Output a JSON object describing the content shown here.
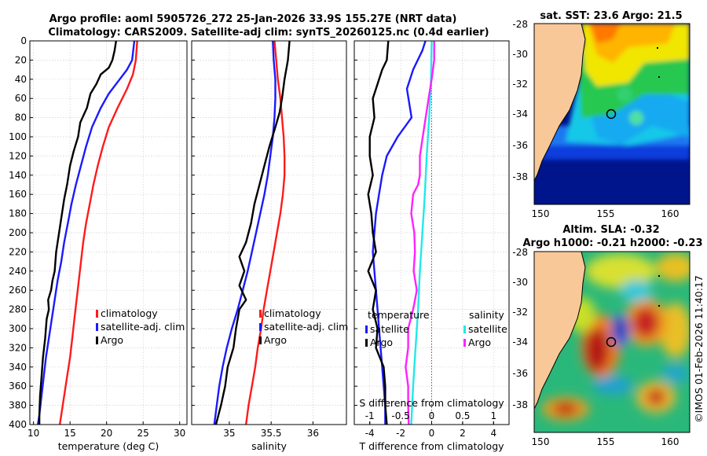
{
  "figure": {
    "title_line1": "Argo profile: aoml 5905726_272 25-Jan-2026 33.9S 155.27E (NRT data)",
    "title_line2": "Climatology: CARS2009. Satellite-adj clim: synTS_20260125.nc (0.4d earlier)",
    "watermark": "©IMOS 01-Feb-2026 11:40:17"
  },
  "colors": {
    "climatology": "#ff1a1a",
    "satellite": "#1a1aff",
    "argo": "#000000",
    "cyan": "#22e8e8",
    "magenta": "#ff22ff",
    "land": "#f8c898"
  },
  "maps": {
    "sst_title": "sat. SST: 23.6 Argo: 21.5",
    "sla_title1": "Altim. SLA: -0.32",
    "sla_title2": "Argo h1000: -0.21 h2000: -0.23",
    "ylabels": [
      "-28",
      "-30",
      "-32",
      "-34",
      "-36",
      "-38"
    ],
    "xlabels": [
      "150",
      "155",
      "160"
    ]
  },
  "chart_data": [
    {
      "type": "line",
      "id": "temperature",
      "xlabel": "temperature (deg C)",
      "ylabel": "",
      "xlim": [
        9.5,
        31
      ],
      "ylim": [
        400,
        0
      ],
      "xticks": [
        10,
        15,
        20,
        25,
        30
      ],
      "yticks": [
        0,
        20,
        40,
        60,
        80,
        100,
        120,
        140,
        160,
        180,
        200,
        220,
        240,
        260,
        280,
        300,
        320,
        340,
        360,
        380,
        400
      ],
      "grid": true,
      "legend": {
        "position": "lower-right",
        "entries": [
          "climatology",
          "satellite-adj. clim",
          "Argo"
        ]
      },
      "series": [
        {
          "name": "climatology",
          "color": "red",
          "points": [
            [
              24.2,
              0
            ],
            [
              24.0,
              20
            ],
            [
              23.6,
              35
            ],
            [
              22.8,
              50
            ],
            [
              21.5,
              70
            ],
            [
              20.3,
              90
            ],
            [
              19.5,
              110
            ],
            [
              18.8,
              130
            ],
            [
              18.2,
              150
            ],
            [
              17.7,
              170
            ],
            [
              17.2,
              190
            ],
            [
              16.8,
              210
            ],
            [
              16.5,
              230
            ],
            [
              16.2,
              250
            ],
            [
              15.9,
              270
            ],
            [
              15.6,
              290
            ],
            [
              15.3,
              310
            ],
            [
              15.0,
              330
            ],
            [
              14.6,
              350
            ],
            [
              14.2,
              370
            ],
            [
              13.8,
              390
            ],
            [
              13.6,
              400
            ]
          ]
        },
        {
          "name": "satellite-adj. clim",
          "color": "blue",
          "points": [
            [
              23.8,
              0
            ],
            [
              23.5,
              20
            ],
            [
              22.8,
              30
            ],
            [
              21.8,
              40
            ],
            [
              20.3,
              55
            ],
            [
              19.2,
              70
            ],
            [
              18.0,
              90
            ],
            [
              17.2,
              110
            ],
            [
              16.5,
              130
            ],
            [
              15.8,
              150
            ],
            [
              15.2,
              170
            ],
            [
              14.7,
              190
            ],
            [
              14.2,
              210
            ],
            [
              13.8,
              230
            ],
            [
              13.3,
              250
            ],
            [
              12.9,
              270
            ],
            [
              12.5,
              290
            ],
            [
              12.1,
              310
            ],
            [
              11.7,
              330
            ],
            [
              11.4,
              350
            ],
            [
              11.1,
              370
            ],
            [
              10.8,
              390
            ],
            [
              10.6,
              400
            ]
          ]
        },
        {
          "name": "Argo",
          "color": "black",
          "points": [
            [
              21.3,
              0
            ],
            [
              21.1,
              10
            ],
            [
              20.8,
              20
            ],
            [
              20.3,
              28
            ],
            [
              19.2,
              35
            ],
            [
              18.6,
              45
            ],
            [
              17.8,
              55
            ],
            [
              17.3,
              70
            ],
            [
              16.4,
              85
            ],
            [
              16.1,
              100
            ],
            [
              15.5,
              115
            ],
            [
              15.0,
              130
            ],
            [
              14.6,
              150
            ],
            [
              14.2,
              165
            ],
            [
              13.9,
              180
            ],
            [
              13.5,
              200
            ],
            [
              13.1,
              220
            ],
            [
              12.9,
              240
            ],
            [
              12.6,
              250
            ],
            [
              12.4,
              260
            ],
            [
              12.0,
              270
            ],
            [
              12.1,
              280
            ],
            [
              11.8,
              290
            ],
            [
              11.6,
              310
            ],
            [
              11.3,
              330
            ],
            [
              11.1,
              350
            ],
            [
              10.9,
              370
            ],
            [
              10.8,
              390
            ],
            [
              10.8,
              400
            ]
          ]
        }
      ]
    },
    {
      "type": "line",
      "id": "salinity",
      "xlabel": "salinity",
      "ylabel": "",
      "xlim": [
        34.55,
        36.4
      ],
      "ylim": [
        400,
        0
      ],
      "xticks": [
        35,
        35.5,
        36
      ],
      "yticks": [
        0,
        20,
        40,
        60,
        80,
        100,
        120,
        140,
        160,
        180,
        200,
        220,
        240,
        260,
        280,
        300,
        320,
        340,
        360,
        380,
        400
      ],
      "grid": true,
      "legend": {
        "position": "lower-right",
        "entries": [
          "climatology",
          "satellite-adj. clim",
          "Argo"
        ]
      },
      "series": [
        {
          "name": "climatology",
          "color": "red",
          "points": [
            [
              35.54,
              0
            ],
            [
              35.56,
              20
            ],
            [
              35.58,
              40
            ],
            [
              35.61,
              60
            ],
            [
              35.63,
              80
            ],
            [
              35.65,
              100
            ],
            [
              35.66,
              120
            ],
            [
              35.66,
              140
            ],
            [
              35.64,
              160
            ],
            [
              35.61,
              180
            ],
            [
              35.57,
              200
            ],
            [
              35.53,
              220
            ],
            [
              35.49,
              240
            ],
            [
              35.45,
              260
            ],
            [
              35.41,
              280
            ],
            [
              35.38,
              300
            ],
            [
              35.34,
              320
            ],
            [
              35.31,
              340
            ],
            [
              35.27,
              360
            ],
            [
              35.23,
              380
            ],
            [
              35.2,
              400
            ]
          ]
        },
        {
          "name": "satellite-adj. clim",
          "color": "blue",
          "points": [
            [
              35.52,
              0
            ],
            [
              35.53,
              20
            ],
            [
              35.55,
              40
            ],
            [
              35.55,
              60
            ],
            [
              35.54,
              80
            ],
            [
              35.52,
              100
            ],
            [
              35.49,
              120
            ],
            [
              35.46,
              140
            ],
            [
              35.42,
              160
            ],
            [
              35.37,
              180
            ],
            [
              35.32,
              200
            ],
            [
              35.27,
              220
            ],
            [
              35.22,
              240
            ],
            [
              35.16,
              260
            ],
            [
              35.1,
              280
            ],
            [
              35.03,
              300
            ],
            [
              34.97,
              320
            ],
            [
              34.92,
              340
            ],
            [
              34.88,
              360
            ],
            [
              34.85,
              380
            ],
            [
              34.82,
              400
            ]
          ]
        },
        {
          "name": "Argo",
          "color": "black",
          "points": [
            [
              35.72,
              0
            ],
            [
              35.7,
              20
            ],
            [
              35.66,
              40
            ],
            [
              35.63,
              60
            ],
            [
              35.6,
              75
            ],
            [
              35.55,
              90
            ],
            [
              35.48,
              110
            ],
            [
              35.42,
              130
            ],
            [
              35.36,
              150
            ],
            [
              35.3,
              170
            ],
            [
              35.26,
              190
            ],
            [
              35.2,
              210
            ],
            [
              35.12,
              225
            ],
            [
              35.18,
              240
            ],
            [
              35.12,
              255
            ],
            [
              35.2,
              270
            ],
            [
              35.12,
              280
            ],
            [
              35.08,
              300
            ],
            [
              35.05,
              320
            ],
            [
              34.98,
              340
            ],
            [
              34.95,
              360
            ],
            [
              34.9,
              380
            ],
            [
              34.84,
              400
            ]
          ]
        }
      ]
    },
    {
      "type": "line",
      "id": "difference",
      "xlabel": "T difference from climatology",
      "top_xlabel": "S difference from climatology",
      "xlim": [
        -5,
        5
      ],
      "top_xlim": [
        -1.25,
        1.25
      ],
      "ylim": [
        400,
        0
      ],
      "xticks": [
        -4,
        -2,
        0,
        2,
        4
      ],
      "top_xticks": [
        "-1",
        "-0.5",
        "0",
        "0.5",
        "1"
      ],
      "top_xtick_values": [
        -1,
        -0.5,
        0,
        0.5,
        1
      ],
      "yticks": [
        0,
        20,
        40,
        60,
        80,
        100,
        120,
        140,
        160,
        180,
        200,
        220,
        240,
        260,
        280,
        300,
        320,
        340,
        360,
        380,
        400
      ],
      "grid": true,
      "legend": {
        "position": "lower",
        "temperature_title": "temperature",
        "salinity_title": "salinity",
        "entries_t": [
          "satellite",
          "Argo"
        ],
        "entries_s": [
          "satellite",
          "Argo"
        ]
      },
      "series": [
        {
          "name": "T satellite",
          "color": "blue",
          "axis": "T",
          "points": [
            [
              -0.4,
              0
            ],
            [
              -0.6,
              10
            ],
            [
              -1.2,
              30
            ],
            [
              -1.6,
              50
            ],
            [
              -1.3,
              80
            ],
            [
              -2.2,
              100
            ],
            [
              -2.9,
              120
            ],
            [
              -3.2,
              140
            ],
            [
              -3.4,
              160
            ],
            [
              -3.6,
              180
            ],
            [
              -3.7,
              200
            ],
            [
              -3.8,
              220
            ],
            [
              -3.7,
              240
            ],
            [
              -3.6,
              260
            ],
            [
              -3.5,
              280
            ],
            [
              -3.4,
              300
            ],
            [
              -3.3,
              320
            ],
            [
              -3.2,
              340
            ],
            [
              -3.1,
              360
            ],
            [
              -3.0,
              380
            ],
            [
              -3.0,
              400
            ]
          ]
        },
        {
          "name": "T Argo",
          "color": "black",
          "axis": "T",
          "points": [
            [
              -2.8,
              0
            ],
            [
              -2.9,
              20
            ],
            [
              -3.2,
              30
            ],
            [
              -3.5,
              45
            ],
            [
              -3.8,
              60
            ],
            [
              -3.7,
              80
            ],
            [
              -4.0,
              100
            ],
            [
              -4.0,
              120
            ],
            [
              -3.8,
              140
            ],
            [
              -4.1,
              160
            ],
            [
              -3.9,
              180
            ],
            [
              -3.8,
              200
            ],
            [
              -3.6,
              220
            ],
            [
              -4.1,
              240
            ],
            [
              -3.6,
              260
            ],
            [
              -3.8,
              280
            ],
            [
              -3.5,
              300
            ],
            [
              -3.6,
              320
            ],
            [
              -3.1,
              340
            ],
            [
              -3.0,
              360
            ],
            [
              -3.0,
              380
            ],
            [
              -2.9,
              400
            ]
          ]
        },
        {
          "name": "S satellite",
          "color": "cyan",
          "axis": "S",
          "points": [
            [
              0,
              0
            ],
            [
              -0.01,
              40
            ],
            [
              -0.04,
              80
            ],
            [
              -0.08,
              120
            ],
            [
              -0.11,
              160
            ],
            [
              -0.15,
              200
            ],
            [
              -0.19,
              240
            ],
            [
              -0.22,
              280
            ],
            [
              -0.26,
              320
            ],
            [
              -0.3,
              360
            ],
            [
              -0.33,
              400
            ]
          ]
        },
        {
          "name": "S Argo",
          "color": "magenta",
          "axis": "S",
          "points": [
            [
              0.04,
              0
            ],
            [
              0.04,
              20
            ],
            [
              0.0,
              40
            ],
            [
              -0.05,
              60
            ],
            [
              -0.12,
              90
            ],
            [
              -0.19,
              120
            ],
            [
              -0.19,
              140
            ],
            [
              -0.22,
              150
            ],
            [
              -0.3,
              160
            ],
            [
              -0.33,
              180
            ],
            [
              -0.28,
              200
            ],
            [
              -0.27,
              220
            ],
            [
              -0.29,
              240
            ],
            [
              -0.24,
              260
            ],
            [
              -0.3,
              280
            ],
            [
              -0.38,
              300
            ],
            [
              -0.38,
              320
            ],
            [
              -0.42,
              340
            ],
            [
              -0.38,
              360
            ],
            [
              -0.38,
              380
            ],
            [
              -0.37,
              400
            ]
          ]
        }
      ]
    }
  ]
}
